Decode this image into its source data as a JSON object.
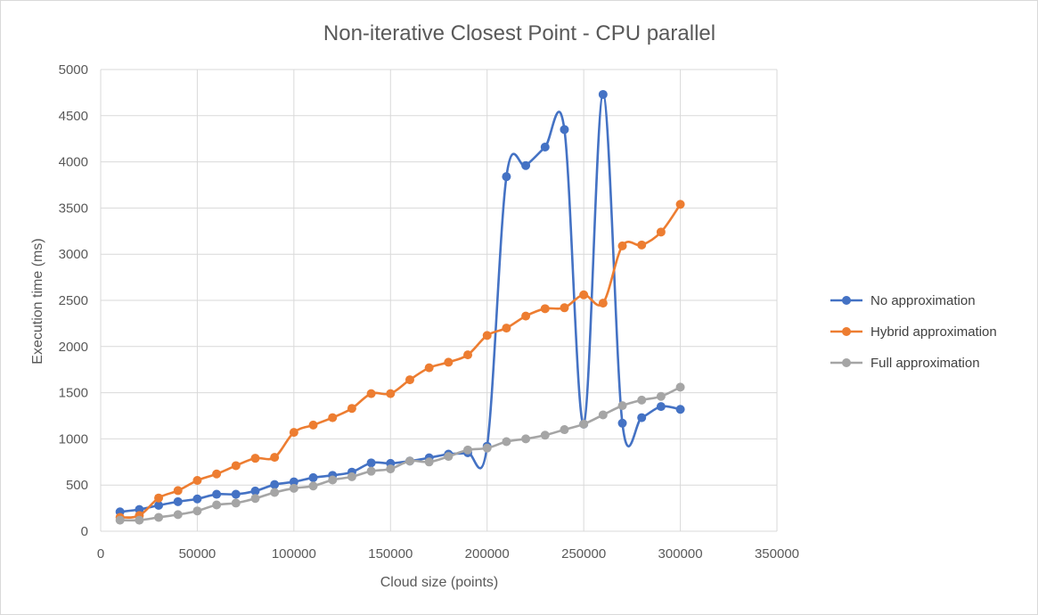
{
  "chart_data": {
    "type": "line",
    "title": "Non-iterative Closest Point - CPU parallel",
    "xlabel": "Cloud size (points)",
    "ylabel": "Execution time (ms)",
    "xlim": [
      0,
      350000
    ],
    "ylim": [
      0,
      5000
    ],
    "x_ticks": [
      "0",
      "50000",
      "100000",
      "150000",
      "200000",
      "250000",
      "300000",
      "350000"
    ],
    "y_ticks": [
      "0",
      "500",
      "1000",
      "1500",
      "2000",
      "2500",
      "3000",
      "3500",
      "4000",
      "4500",
      "5000"
    ],
    "grid": true,
    "legend_position": "right",
    "x": [
      10000,
      20000,
      30000,
      40000,
      50000,
      60000,
      70000,
      80000,
      90000,
      100000,
      110000,
      120000,
      130000,
      140000,
      150000,
      160000,
      170000,
      180000,
      190000,
      200000,
      210000,
      220000,
      230000,
      240000,
      250000,
      260000,
      270000,
      280000,
      290000,
      300000
    ],
    "series": [
      {
        "name": "No approximation",
        "color": "#4472c4",
        "values": [
          210,
          235,
          280,
          320,
          350,
          400,
          400,
          435,
          505,
          535,
          580,
          605,
          640,
          740,
          735,
          760,
          795,
          835,
          850,
          920,
          3840,
          3960,
          4160,
          4350,
          1160,
          4730,
          1170,
          1230,
          1350,
          1320
        ]
      },
      {
        "name": "Hybrid approximation",
        "color": "#ed7d31",
        "values": [
          150,
          170,
          360,
          440,
          550,
          620,
          710,
          790,
          800,
          1070,
          1150,
          1230,
          1330,
          1490,
          1490,
          1640,
          1770,
          1830,
          1910,
          2120,
          2200,
          2330,
          2410,
          2420,
          2560,
          2470,
          3090,
          3100,
          3240,
          3540
        ]
      },
      {
        "name": "Full approximation",
        "color": "#a5a5a5",
        "values": [
          120,
          120,
          150,
          180,
          220,
          285,
          305,
          355,
          420,
          465,
          490,
          555,
          590,
          650,
          675,
          760,
          750,
          810,
          880,
          900,
          970,
          1000,
          1040,
          1100,
          1160,
          1260,
          1360,
          1420,
          1460,
          1560
        ]
      }
    ]
  }
}
